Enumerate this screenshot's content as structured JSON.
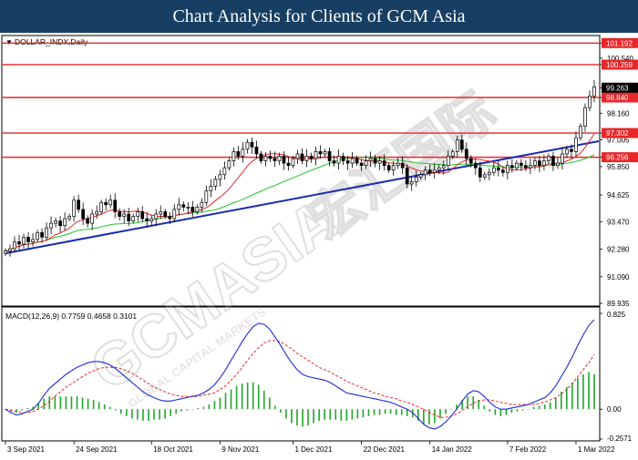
{
  "banner": {
    "title": "Chart Analysis for Clients of GCM Asia"
  },
  "watermark": {
    "brand": "GCMASIA",
    "chinese": "宏汇国际",
    "tagline": "GLOBAL CAPITAL MARKETS"
  },
  "chart_data": [
    {
      "type": "candlestick",
      "symbol_label": "DOLLAR_INDX,Daily",
      "y_ticks": [
        "101.192",
        "100.540",
        "100.259",
        "99.263",
        "98.840",
        "98.160",
        "97.302",
        "97.005",
        "96.256",
        "95.850",
        "94.625",
        "93.470",
        "92.280",
        "91.090",
        "89.935"
      ],
      "ylim": [
        89.9,
        101.4
      ],
      "highlight_labels": [
        {
          "value": 101.192,
          "label": "101.192",
          "color": "#e8272a"
        },
        {
          "value": 100.259,
          "label": "100.259",
          "color": "#e8272a"
        },
        {
          "value": 98.84,
          "label": "98.840",
          "color": "#e8272a"
        },
        {
          "value": 97.302,
          "label": "97.302",
          "color": "#e8272a"
        },
        {
          "value": 96.256,
          "label": "96.256",
          "color": "#e8272a"
        },
        {
          "value": 99.263,
          "label": "99.263",
          "color": "#000000"
        }
      ],
      "horizontal_levels": [
        101.192,
        100.259,
        98.84,
        97.302,
        96.256
      ],
      "trendline": {
        "from": [
          0,
          92.1
        ],
        "to": [
          130,
          96.95
        ],
        "color": "#1a2bb0"
      },
      "x_labels": [
        {
          "index": 0,
          "label": "3 Sep 2021"
        },
        {
          "index": 15,
          "label": "24 Sep 2021"
        },
        {
          "index": 32,
          "label": "18 Oct 2021"
        },
        {
          "index": 47,
          "label": "9 Nov 2021"
        },
        {
          "index": 63,
          "label": "1 Dec 2021"
        },
        {
          "index": 78,
          "label": "22 Dec 2021"
        },
        {
          "index": 93,
          "label": "14 Jan 2022"
        },
        {
          "index": 110,
          "label": "7 Feb 2022"
        },
        {
          "index": 125,
          "label": "1 Mar 2022"
        }
      ],
      "closes": [
        92.2,
        92.3,
        92.6,
        92.5,
        92.8,
        92.6,
        92.7,
        93.0,
        92.8,
        93.2,
        93.4,
        93.5,
        93.3,
        93.6,
        93.7,
        94.4,
        94.0,
        93.6,
        93.4,
        93.8,
        93.9,
        94.3,
        94.2,
        94.4,
        93.9,
        93.7,
        93.8,
        93.5,
        93.7,
        93.9,
        93.6,
        93.5,
        93.6,
        93.8,
        93.9,
        93.7,
        93.6,
        94.0,
        94.2,
        94.1,
        94.1,
        93.9,
        94.1,
        94.3,
        94.8,
        95.0,
        95.3,
        95.5,
        95.8,
        96.1,
        96.5,
        96.3,
        96.6,
        96.9,
        96.7,
        96.4,
        96.1,
        96.3,
        96.2,
        96.1,
        96.3,
        96.0,
        95.9,
        96.2,
        96.4,
        96.1,
        96.3,
        96.2,
        96.5,
        96.4,
        96.5,
        96.1,
        96.0,
        96.3,
        96.1,
        96.0,
        96.2,
        96.0,
        95.9,
        96.1,
        96.2,
        96.0,
        96.1,
        95.9,
        95.7,
        95.9,
        96.0,
        95.8,
        95.1,
        95.2,
        95.4,
        95.5,
        95.7,
        95.6,
        95.7,
        95.8,
        95.9,
        96.3,
        96.5,
        97.0,
        96.6,
        96.2,
        96.0,
        95.8,
        95.4,
        95.5,
        95.6,
        95.8,
        95.7,
        95.6,
        95.9,
        95.8,
        96.0,
        95.9,
        95.8,
        95.9,
        96.1,
        95.9,
        96.1,
        96.3,
        95.9,
        96.0,
        96.4,
        96.6,
        96.5,
        97.1,
        97.6,
        98.4,
        98.9,
        99.3
      ],
      "overlay_series": [
        {
          "kind": "ma-fast",
          "color": "#e8272a"
        },
        {
          "kind": "ma-slow",
          "color": "#22c32a"
        }
      ]
    },
    {
      "type": "macd",
      "label": "MACD(12,26,9) 0.7759 0.4658 0.3101",
      "y_ticks": [
        "0.825",
        "0.00",
        "-0.2571"
      ],
      "ylim": [
        -0.2571,
        0.825
      ],
      "macd_line": [
        0.0,
        -0.03,
        -0.05,
        -0.04,
        -0.02,
        0.0,
        0.05,
        0.12,
        0.18,
        0.22,
        0.26,
        0.3,
        0.33,
        0.36,
        0.38,
        0.4,
        0.41,
        0.41,
        0.4,
        0.38,
        0.35,
        0.31,
        0.27,
        0.23,
        0.19,
        0.15,
        0.12,
        0.1,
        0.08,
        0.07,
        0.07,
        0.08,
        0.09,
        0.1,
        0.11,
        0.12,
        0.14,
        0.17,
        0.21,
        0.27,
        0.34,
        0.42,
        0.5,
        0.58,
        0.65,
        0.71,
        0.74,
        0.73,
        0.69,
        0.62,
        0.55,
        0.47,
        0.4,
        0.34,
        0.3,
        0.28,
        0.27,
        0.26,
        0.25,
        0.23,
        0.2,
        0.17,
        0.14,
        0.13,
        0.12,
        0.11,
        0.1,
        0.09,
        0.08,
        0.07,
        0.06,
        0.04,
        0.02,
        0.0,
        -0.03,
        -0.08,
        -0.13,
        -0.16,
        -0.17,
        -0.15,
        -0.11,
        -0.06,
        0.0,
        0.07,
        0.13,
        0.16,
        0.15,
        0.11,
        0.06,
        0.02,
        0.0,
        0.0,
        0.01,
        0.02,
        0.03,
        0.04,
        0.06,
        0.08,
        0.1,
        0.14,
        0.2,
        0.28,
        0.36,
        0.45,
        0.55,
        0.64,
        0.72,
        0.77
      ],
      "signal_line": [
        0.0,
        -0.01,
        -0.02,
        -0.03,
        -0.03,
        -0.02,
        0.0,
        0.03,
        0.07,
        0.11,
        0.15,
        0.19,
        0.22,
        0.25,
        0.28,
        0.31,
        0.33,
        0.35,
        0.36,
        0.36,
        0.36,
        0.35,
        0.33,
        0.31,
        0.28,
        0.25,
        0.22,
        0.19,
        0.17,
        0.15,
        0.13,
        0.12,
        0.11,
        0.11,
        0.11,
        0.11,
        0.12,
        0.13,
        0.14,
        0.17,
        0.2,
        0.25,
        0.3,
        0.36,
        0.42,
        0.48,
        0.53,
        0.57,
        0.59,
        0.59,
        0.58,
        0.55,
        0.52,
        0.48,
        0.45,
        0.42,
        0.39,
        0.36,
        0.34,
        0.32,
        0.29,
        0.27,
        0.24,
        0.22,
        0.2,
        0.18,
        0.16,
        0.14,
        0.13,
        0.11,
        0.1,
        0.09,
        0.07,
        0.06,
        0.04,
        0.02,
        0.0,
        -0.03,
        -0.05,
        -0.07,
        -0.07,
        -0.06,
        -0.04,
        -0.01,
        0.02,
        0.05,
        0.07,
        0.08,
        0.08,
        0.07,
        0.06,
        0.05,
        0.04,
        0.04,
        0.04,
        0.04,
        0.04,
        0.05,
        0.06,
        0.08,
        0.1,
        0.13,
        0.17,
        0.22,
        0.28,
        0.34,
        0.4,
        0.47
      ],
      "colors": {
        "macd": "#1a2bd8",
        "signal": "#e8272a",
        "histogram": "#22a52a"
      }
    }
  ]
}
